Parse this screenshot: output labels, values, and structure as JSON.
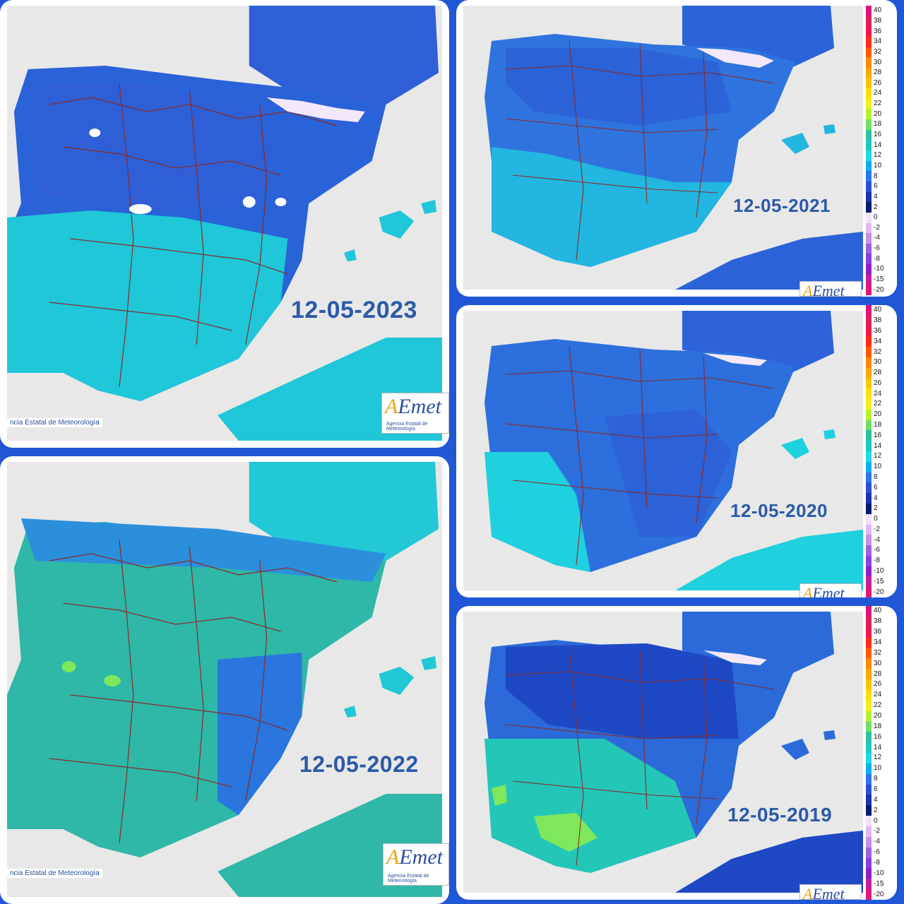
{
  "panels": [
    {
      "id": "p2023",
      "date": "12-05-2023",
      "credit": "ncia Estatal de Meteorología",
      "logo": "AEmet",
      "logo_sub": "Agencia Estatal de Meteorología",
      "north": "#2e5fd6",
      "mid": "#2a62d8",
      "south": "#1fc7d8"
    },
    {
      "id": "p2021",
      "date": "12-05-2021",
      "logo": "AEmet",
      "north": "#2c63d8",
      "mid": "#2f74de",
      "south": "#22b6e0"
    },
    {
      "id": "p2020",
      "date": "12-05-2020",
      "logo": "AEmet",
      "north": "#2d62d8",
      "mid": "#2d6fdc",
      "south": "#1fd0de"
    },
    {
      "id": "p2022",
      "date": "12-05-2022",
      "credit": "ncia Estatal de Meteorología",
      "logo": "AEmet",
      "logo_sub": "Agencia Estatal de Meteorología",
      "north": "#2c8fdc",
      "mid": "#22c8d6",
      "south": "#2fb7a8"
    },
    {
      "id": "p2019",
      "date": "12-05-2019",
      "logo": "AEmet",
      "north": "#1f48c4",
      "mid": "#2b6ad8",
      "south": "#24c6b8"
    }
  ],
  "legend": {
    "ticks": [
      "40",
      "38",
      "36",
      "34",
      "32",
      "30",
      "28",
      "26",
      "24",
      "22",
      "20",
      "18",
      "16",
      "14",
      "12",
      "10",
      "8",
      "6",
      "4",
      "2",
      "0",
      "-2",
      "-4",
      "-6",
      "-8",
      "-10",
      "-15",
      "-20"
    ],
    "colors": [
      "#d8147a",
      "#e02058",
      "#f0184a",
      "#ff2a18",
      "#ff5a00",
      "#ff8a00",
      "#ffa800",
      "#ffc400",
      "#ffe000",
      "#f0f020",
      "#b8f030",
      "#70e060",
      "#2fc0a0",
      "#20c8c0",
      "#20d8e8",
      "#10b0f0",
      "#2a78e8",
      "#2a50d0",
      "#1a34b0",
      "#0a1a70",
      "#f2e0f8",
      "#e0b8f0",
      "#c890e8",
      "#a060e0",
      "#8a40d8",
      "#9020c0",
      "#c020a0",
      "#e01878"
    ]
  }
}
